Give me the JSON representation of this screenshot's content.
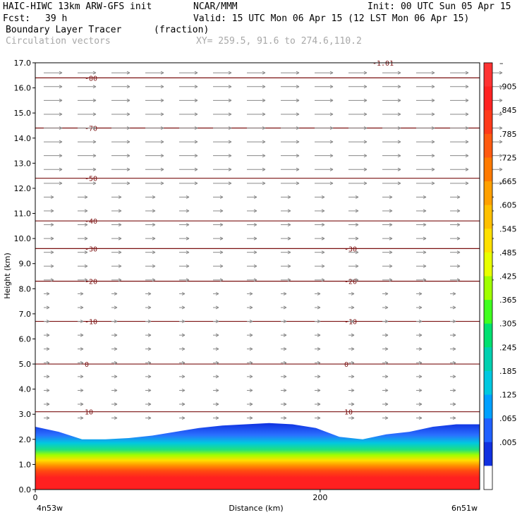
{
  "header": {
    "model": "HAIC-HIWC 13km ARW-GFS init",
    "org": "NCAR/MMM",
    "init": "Init: 00 UTC Sun 05 Apr 15",
    "fcst_label": "Fcst:",
    "fcst_value": "39 h",
    "valid": "Valid: 15 UTC Mon 06 Apr 15 (12 LST Mon 06 Apr 15)",
    "field": "Boundary Layer Tracer",
    "units": "(fraction)",
    "vectors": "Circulation vectors",
    "xy": "XY= 259.5, 91.6 to 274.6,110.2"
  },
  "chart_data": {
    "type": "cross-section",
    "ylabel": "Height (km)",
    "xlabel": "Distance (km)",
    "ylim": [
      0,
      17
    ],
    "xlim": [
      0,
      312
    ],
    "yticks": [
      "0.0",
      "1.0",
      "2.0",
      "3.0",
      "4.0",
      "5.0",
      "6.0",
      "7.0",
      "8.0",
      "9.0",
      "10.0",
      "11.0",
      "12.0",
      "13.0",
      "14.0",
      "15.0",
      "16.0",
      "17.0"
    ],
    "xticks": [
      {
        "value": 0,
        "label": "0"
      },
      {
        "value": 200,
        "label": "200"
      }
    ],
    "endpoint_left": "4n53w",
    "endpoint_right": "6n51w",
    "colorbar": {
      "labels": [
        "–",
        ".905",
        ".845",
        ".785",
        ".725",
        ".665",
        ".605",
        ".545",
        ".485",
        ".425",
        ".365",
        ".305",
        ".245",
        ".185",
        ".125",
        ".065",
        ".005"
      ],
      "colors": [
        "#ff3333",
        "#ff2222",
        "#ff3a1a",
        "#ff5a10",
        "#ff7a00",
        "#ffa000",
        "#ffc000",
        "#ffe000",
        "#e8ff00",
        "#a0ff00",
        "#40ff20",
        "#00e070",
        "#00d0b0",
        "#00c8e0",
        "#00a0ff",
        "#2060ff",
        "#1030e0",
        "#ffffff"
      ]
    },
    "temperature_contours": [
      {
        "height": 16.4,
        "label": "-80"
      },
      {
        "height": 14.4,
        "label": "-70"
      },
      {
        "height": 12.4,
        "label": "-50"
      },
      {
        "height": 10.7,
        "label": "-40"
      },
      {
        "height": 9.6,
        "label": "-30"
      },
      {
        "height": 8.3,
        "label": "-20"
      },
      {
        "height": 6.7,
        "label": "-10"
      },
      {
        "height": 5.0,
        "label": "0"
      },
      {
        "height": 3.1,
        "label": "10"
      }
    ],
    "top_label": "-1.01",
    "boundary_layer_top_km": [
      2.5,
      2.3,
      2.0,
      2.0,
      2.05,
      2.15,
      2.3,
      2.45,
      2.55,
      2.6,
      2.65,
      2.6,
      2.45,
      2.1,
      2.0,
      2.2,
      2.3,
      2.5,
      2.6,
      2.6
    ]
  }
}
